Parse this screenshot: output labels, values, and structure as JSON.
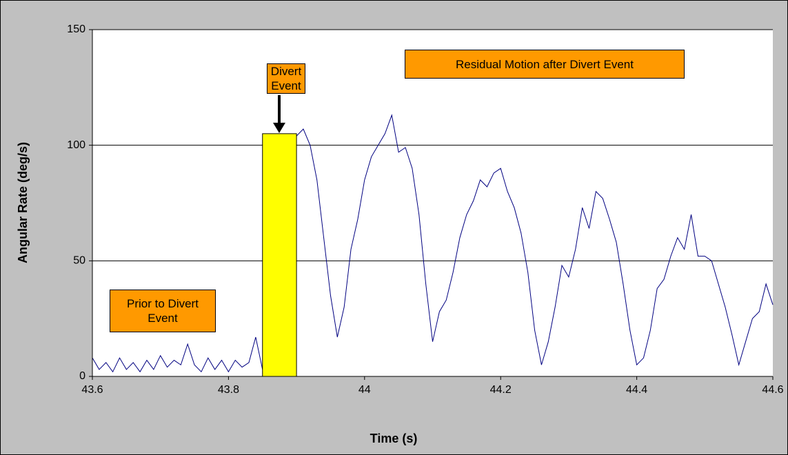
{
  "chart_data": {
    "type": "line",
    "x_label": "Time (s)",
    "y_label": "Angular Rate (deg/s)",
    "x": [
      43.6,
      43.61,
      43.62,
      43.63,
      43.64,
      43.65,
      43.66,
      43.67,
      43.68,
      43.69,
      43.7,
      43.71,
      43.72,
      43.73,
      43.74,
      43.75,
      43.76,
      43.77,
      43.78,
      43.79,
      43.8,
      43.81,
      43.82,
      43.83,
      43.84,
      43.85,
      43.86,
      43.87,
      43.88,
      43.89,
      43.9,
      43.91,
      43.92,
      43.93,
      43.94,
      43.95,
      43.96,
      43.97,
      43.98,
      43.99,
      44,
      44.01,
      44.02,
      44.03,
      44.04,
      44.05,
      44.06,
      44.07,
      44.08,
      44.09,
      44.1,
      44.11,
      44.12,
      44.13,
      44.14,
      44.15,
      44.16,
      44.17,
      44.18,
      44.19,
      44.2,
      44.21,
      44.22,
      44.23,
      44.24,
      44.25,
      44.26,
      44.27,
      44.28,
      44.29,
      44.3,
      44.31,
      44.32,
      44.33,
      44.34,
      44.35,
      44.36,
      44.37,
      44.38,
      44.39,
      44.4,
      44.41,
      44.42,
      44.43,
      44.44,
      44.45,
      44.46,
      44.47,
      44.48,
      44.49,
      44.5,
      44.51,
      44.52,
      44.53,
      44.54,
      44.55,
      44.56,
      44.57,
      44.58,
      44.59,
      44.6
    ],
    "values": [
      8,
      3,
      6,
      2,
      8,
      3,
      6,
      2,
      7,
      3,
      9,
      4,
      7,
      5,
      14,
      5,
      2,
      8,
      3,
      7,
      2,
      7,
      4,
      6,
      17,
      3,
      30,
      60,
      85,
      100,
      104,
      107,
      100,
      85,
      60,
      35,
      17,
      30,
      55,
      68,
      85,
      95,
      100,
      105,
      113,
      97,
      99,
      90,
      70,
      40,
      15,
      28,
      33,
      45,
      60,
      70,
      76,
      85,
      82,
      88,
      90,
      80,
      73,
      62,
      45,
      20,
      5,
      15,
      30,
      48,
      43,
      55,
      73,
      64,
      80,
      77,
      68,
      58,
      40,
      20,
      5,
      8,
      20,
      38,
      42,
      52,
      60,
      55,
      70,
      52,
      52,
      50,
      40,
      30,
      18,
      5,
      15,
      25,
      28,
      40,
      31
    ],
    "color": "#000080",
    "xlim": [
      43.6,
      44.6
    ],
    "xticks": [
      43.6,
      43.8,
      44,
      44.2,
      44.4,
      44.6
    ],
    "ylim": [
      0,
      150
    ],
    "yticks": [
      0,
      50,
      100,
      150
    ],
    "grid": true,
    "highlight_band": {
      "xlim": [
        43.85,
        43.9
      ],
      "ylim": [
        0,
        105
      ],
      "color": "#ffff00"
    },
    "annotations": [
      "Divert Event",
      "Residual Motion after Divert Event",
      "Prior to Divert Event"
    ],
    "annotation_color": "#ff9900"
  }
}
